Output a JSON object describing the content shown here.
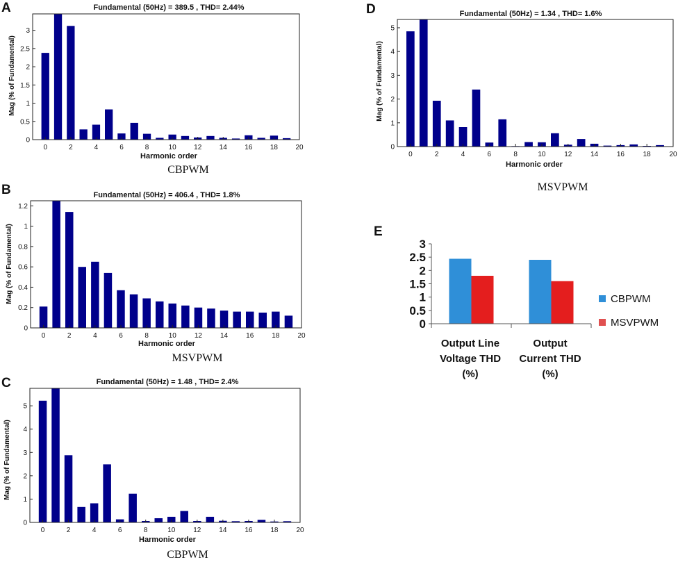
{
  "chart_data": [
    {
      "id": "A",
      "panel_label": "A",
      "type": "bar",
      "title": "Fundamental (50Hz) = 389.5 , THD= 2.44%",
      "xlabel": "Harmonic order",
      "ylabel": "Mag (% of Fundamental)",
      "caption": "CBPWM",
      "x": [
        0,
        1,
        2,
        3,
        4,
        5,
        6,
        7,
        8,
        9,
        10,
        11,
        12,
        13,
        14,
        15,
        16,
        17,
        18,
        19
      ],
      "values": [
        2.38,
        3.45,
        3.12,
        0.28,
        0.41,
        0.83,
        0.17,
        0.46,
        0.16,
        0.05,
        0.14,
        0.1,
        0.06,
        0.1,
        0.05,
        0.03,
        0.12,
        0.05,
        0.11,
        0.04
      ],
      "xlim": [
        -1,
        20
      ],
      "ylim": [
        0,
        3.45
      ],
      "xticks": [
        "0",
        "2",
        "4",
        "6",
        "8",
        "10",
        "12",
        "14",
        "16",
        "18",
        "20"
      ],
      "yticks": [
        "0",
        "0.5",
        "1",
        "1.5",
        "2",
        "2.5",
        "3"
      ],
      "color": "#00008b"
    },
    {
      "id": "B",
      "panel_label": "B",
      "type": "bar",
      "title": "Fundamental (50Hz) = 406.4 , THD= 1.8%",
      "xlabel": "Harmonic order",
      "ylabel": "Mag (% of Fundamental)",
      "caption": "MSVPWM",
      "x": [
        0,
        1,
        2,
        3,
        4,
        5,
        6,
        7,
        8,
        9,
        10,
        11,
        12,
        13,
        14,
        15,
        16,
        17,
        18,
        19
      ],
      "values": [
        0.21,
        1.25,
        1.14,
        0.6,
        0.65,
        0.54,
        0.37,
        0.33,
        0.29,
        0.26,
        0.24,
        0.22,
        0.2,
        0.19,
        0.17,
        0.16,
        0.16,
        0.15,
        0.16,
        0.12
      ],
      "xlim": [
        -1,
        20
      ],
      "ylim": [
        0,
        1.25
      ],
      "xticks": [
        "0",
        "2",
        "4",
        "6",
        "8",
        "10",
        "12",
        "14",
        "16",
        "18",
        "20"
      ],
      "yticks": [
        "0",
        "0.2",
        "0.4",
        "0.6",
        "0.8",
        "1",
        "1.2"
      ],
      "color": "#00008b"
    },
    {
      "id": "C",
      "panel_label": "C",
      "type": "bar",
      "title": "Fundamental (50Hz) = 1.48   , THD= 2.4%",
      "xlabel": "Harmonic order",
      "ylabel": "Mag (% of Fundamental)",
      "caption": "CBPWM",
      "x": [
        0,
        1,
        2,
        3,
        4,
        5,
        6,
        7,
        8,
        9,
        10,
        11,
        12,
        13,
        14,
        15,
        16,
        17,
        18,
        19
      ],
      "values": [
        5.22,
        5.75,
        2.88,
        0.66,
        0.82,
        2.49,
        0.13,
        1.23,
        0.06,
        0.18,
        0.24,
        0.49,
        0.06,
        0.24,
        0.07,
        0.05,
        0.06,
        0.11,
        0.04,
        0.05
      ],
      "xlim": [
        -1,
        20
      ],
      "ylim": [
        0,
        5.75
      ],
      "xticks": [
        "0",
        "2",
        "4",
        "6",
        "8",
        "10",
        "12",
        "14",
        "16",
        "18",
        "20"
      ],
      "yticks": [
        "0",
        "1",
        "2",
        "3",
        "4",
        "5"
      ],
      "color": "#00008b"
    },
    {
      "id": "D",
      "panel_label": "D",
      "type": "bar",
      "title": "Fundamental (50Hz) = 1.34 , THD= 1.6%",
      "xlabel": "Harmonic order",
      "ylabel": "Mag (% of Fundamental)",
      "caption": "MSVPWM",
      "x": [
        0,
        1,
        2,
        3,
        4,
        5,
        6,
        7,
        8,
        9,
        10,
        11,
        12,
        13,
        14,
        15,
        16,
        17,
        18,
        19
      ],
      "values": [
        4.85,
        5.35,
        1.93,
        1.1,
        0.82,
        2.4,
        0.17,
        1.15,
        0.02,
        0.19,
        0.18,
        0.56,
        0.08,
        0.32,
        0.12,
        0.04,
        0.06,
        0.09,
        0.03,
        0.06
      ],
      "xlim": [
        -1,
        20
      ],
      "ylim": [
        0,
        5.35
      ],
      "xticks": [
        "0",
        "2",
        "4",
        "6",
        "8",
        "10",
        "12",
        "14",
        "16",
        "18",
        "20"
      ],
      "yticks": [
        "0",
        "1",
        "2",
        "3",
        "4",
        "5"
      ],
      "color": "#00008b"
    },
    {
      "id": "E",
      "panel_label": "E",
      "type": "bar",
      "title": "",
      "categories": [
        "Output Line Voltage THD (%)",
        "Output Current THD (%)"
      ],
      "category_lines": [
        [
          "Output Line",
          "Voltage THD",
          "(%)"
        ],
        [
          "Output",
          "Current THD",
          "(%)"
        ]
      ],
      "series": [
        {
          "name": "CBPWM",
          "values": [
            2.44,
            2.4
          ],
          "color": "#2f8fd8"
        },
        {
          "name": "MSVPWM",
          "values": [
            1.8,
            1.6
          ],
          "color": "#e41e1e"
        }
      ],
      "ylim": [
        0,
        3
      ],
      "yticks": [
        "0",
        "0.5",
        "1",
        "1.5",
        "2",
        "2.5",
        "3"
      ],
      "legend_position": "right"
    }
  ]
}
